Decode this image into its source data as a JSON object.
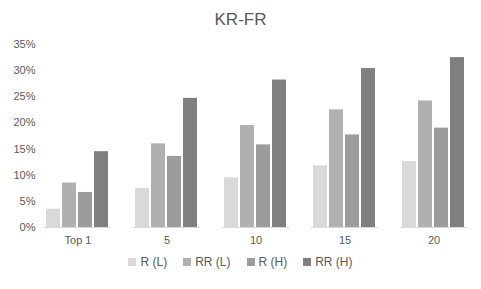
{
  "chart_data": {
    "type": "bar",
    "title": "KR-FR",
    "categories": [
      "Top 1",
      "5",
      "10",
      "15",
      "20"
    ],
    "series": [
      {
        "name": "R (L)",
        "color": "#d9d9d9",
        "values": [
          3.5,
          7.5,
          9.5,
          11.8,
          12.6
        ]
      },
      {
        "name": "RR (L)",
        "color": "#b0b0b0",
        "values": [
          8.5,
          16,
          19.5,
          22.5,
          24.2
        ]
      },
      {
        "name": "R (H)",
        "color": "#9c9c9c",
        "values": [
          6.7,
          13.6,
          15.8,
          17.7,
          19
        ]
      },
      {
        "name": "RR (H)",
        "color": "#7f7f7f",
        "values": [
          14.5,
          24.7,
          28.2,
          30.4,
          32.5
        ]
      }
    ],
    "ylim": [
      0,
      35
    ],
    "yticks": [
      {
        "value": 0,
        "label": "0%"
      },
      {
        "value": 5,
        "label": "5%"
      },
      {
        "value": 10,
        "label": "10%"
      },
      {
        "value": 15,
        "label": "15%"
      },
      {
        "value": 20,
        "label": "20%"
      },
      {
        "value": 25,
        "label": "25%"
      },
      {
        "value": 30,
        "label": "30%"
      },
      {
        "value": 35,
        "label": "35%"
      }
    ],
    "grid": false,
    "legend": "bottom"
  }
}
